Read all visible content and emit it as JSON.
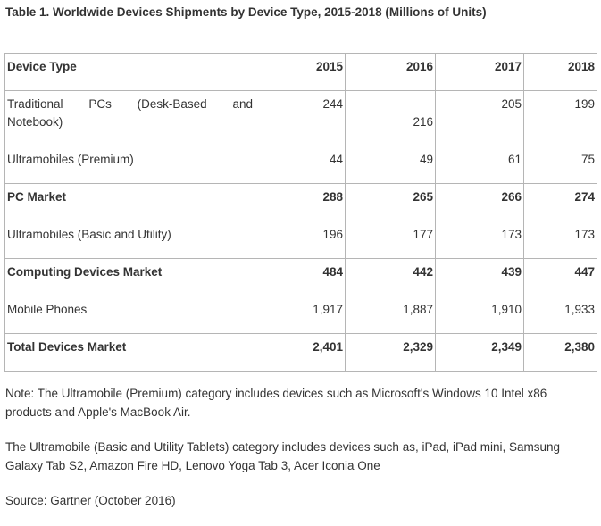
{
  "caption": "Table 1. Worldwide Devices Shipments by Device Type, 2015-2018 (Millions of Units)",
  "table": {
    "headers": [
      "Device Type",
      "2015",
      "2016",
      "2017",
      "2018"
    ],
    "rows": [
      {
        "label_line1": "Traditional PCs (Desk-Based and",
        "label_line2": "Notebook)",
        "values": [
          "244",
          "216",
          "205",
          "199"
        ]
      },
      {
        "label": "Ultramobiles (Premium)",
        "values": [
          "44",
          "49",
          "61",
          "75"
        ]
      },
      {
        "label": "PC Market",
        "values": [
          "288",
          "265",
          "266",
          "274"
        ]
      },
      {
        "label": "Ultramobiles (Basic and Utility)",
        "values": [
          "196",
          "177",
          "173",
          "173"
        ]
      },
      {
        "label": "Computing Devices Market",
        "values": [
          "484",
          "442",
          "439",
          "447"
        ]
      },
      {
        "label": "Mobile Phones",
        "values": [
          "1,917",
          "1,887",
          "1,910",
          "1,933"
        ]
      },
      {
        "label": "Total Devices Market",
        "values": [
          "2,401",
          "2,329",
          "2,349",
          "2,380"
        ]
      }
    ]
  },
  "notes": [
    "Note: The Ultramobile (Premium) category includes devices such as Microsoft's Windows 10 Intel x86 products and Apple's MacBook Air.",
    "The Ultramobile (Basic and Utility Tablets) category includes devices such as, iPad, iPad mini, Samsung Galaxy Tab S2, Amazon Fire HD, Lenovo Yoga Tab 3, Acer Iconia One",
    "Source: Gartner (October 2016)"
  ]
}
